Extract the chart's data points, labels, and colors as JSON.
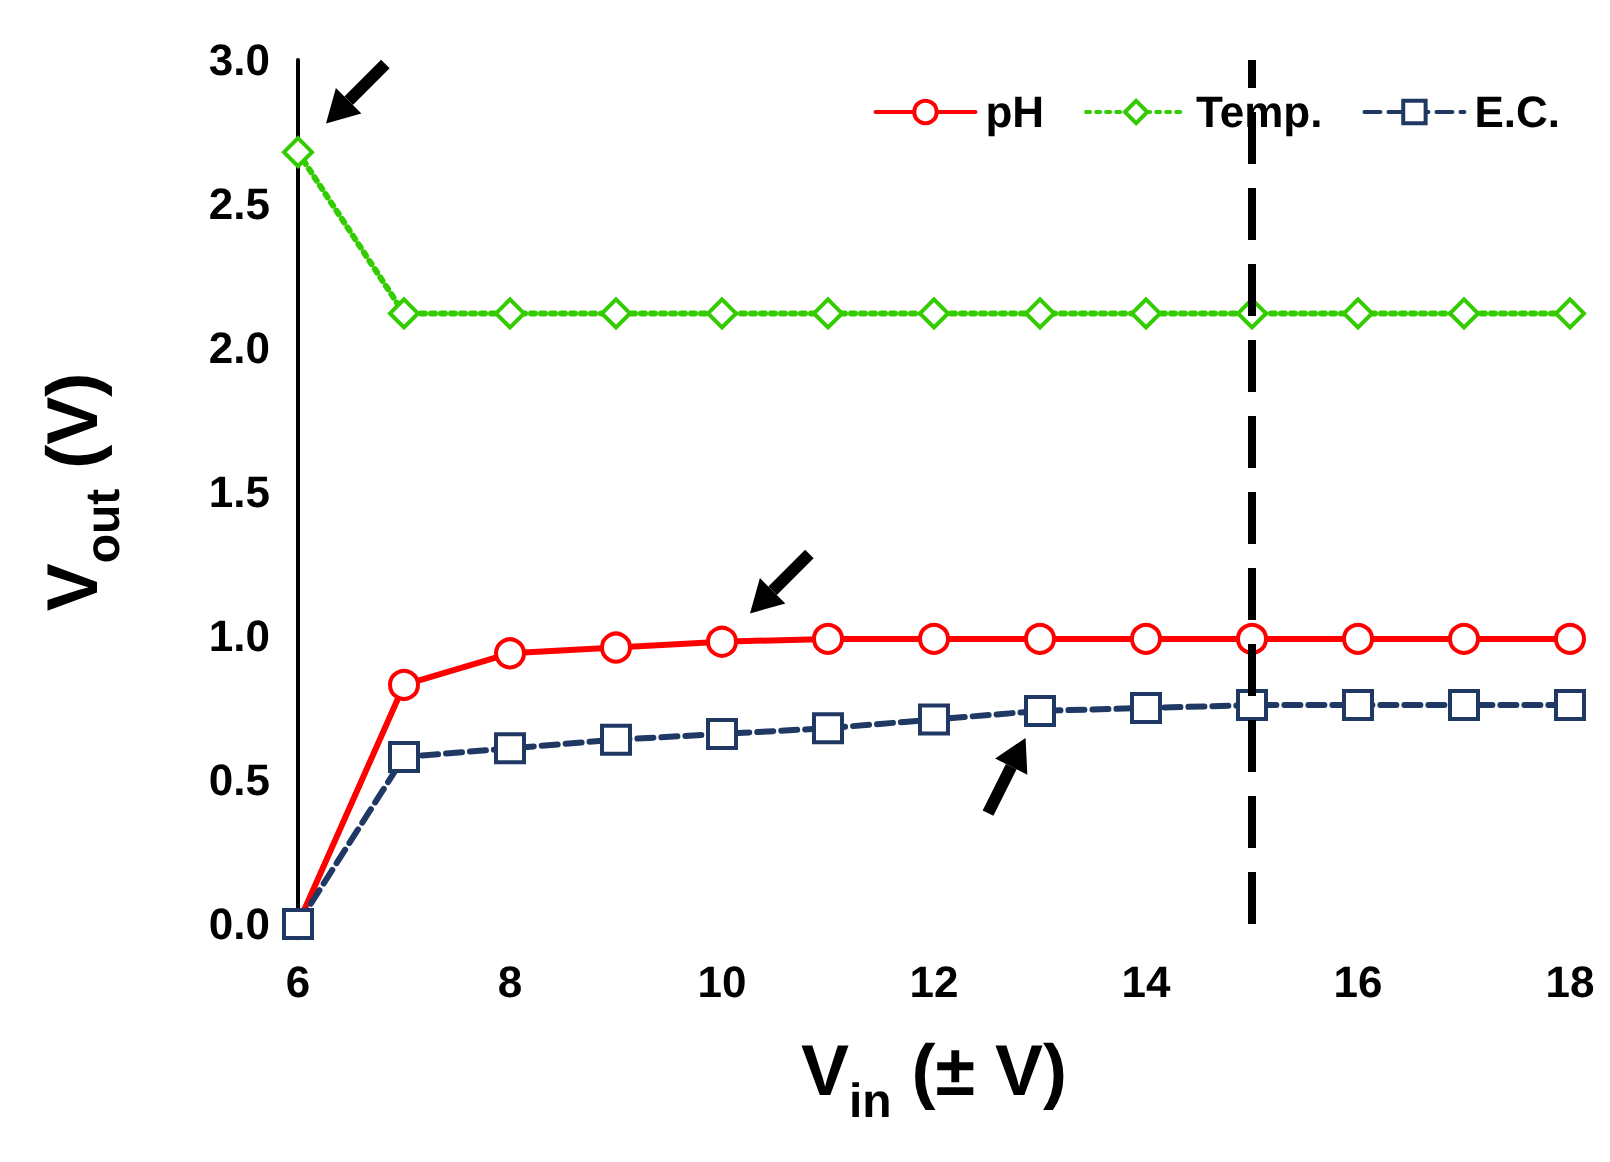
{
  "chart_data": {
    "type": "line",
    "xlabel": "V$_{in}$ (± V)",
    "ylabel": "V$_{out}$ (V)",
    "x": [
      6,
      7,
      8,
      9,
      10,
      11,
      12,
      13,
      14,
      15,
      16,
      17,
      18
    ],
    "series": [
      {
        "name": "pH",
        "color": "#ff0000",
        "marker": "circle",
        "line_style": "solid",
        "values": [
          0,
          0.83,
          0.94,
          0.96,
          0.98,
          0.99,
          0.99,
          0.99,
          0.99,
          0.99,
          0.99,
          0.99,
          0.99
        ]
      },
      {
        "name": "Temp.",
        "color": "#33cc00",
        "marker": "diamond",
        "line_style": "dotted",
        "values": [
          2.68,
          2.12,
          2.12,
          2.12,
          2.12,
          2.12,
          2.12,
          2.12,
          2.12,
          2.12,
          2.12,
          2.12,
          2.12
        ]
      },
      {
        "name": "E.C.",
        "color": "#1f3864",
        "marker": "square",
        "line_style": "dashed",
        "values": [
          0,
          0.58,
          0.61,
          0.64,
          0.66,
          0.68,
          0.71,
          0.74,
          0.75,
          0.76,
          0.76,
          0.76,
          0.76
        ]
      }
    ],
    "xlim": [
      6,
      18
    ],
    "xticks": [
      6,
      8,
      10,
      12,
      14,
      16,
      18
    ],
    "ylim": [
      0,
      3
    ],
    "yticks": [
      {
        "value": 0,
        "label": "0.0"
      },
      0.5,
      {
        "value": 1,
        "label": "1.0"
      },
      1.5,
      {
        "value": 2,
        "label": "2.0"
      },
      2.5,
      {
        "value": 3,
        "label": "3.0"
      }
    ],
    "ref_lines": [
      {
        "axis": "x",
        "value": 15,
        "label": null,
        "color": "#000000",
        "line_style": "dashed"
      }
    ],
    "grid": false,
    "legend": "top right"
  }
}
